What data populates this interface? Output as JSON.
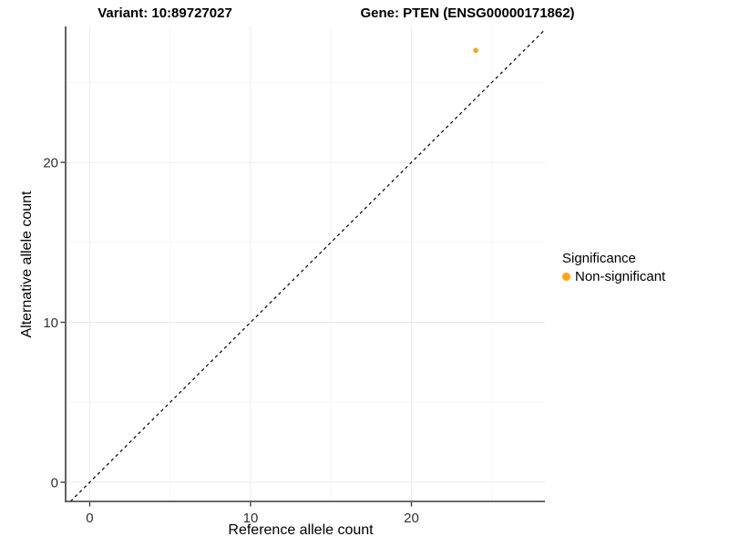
{
  "chart_data": {
    "type": "scatter",
    "title_variant": "Variant: 10:89727027",
    "title_gene": "Gene: PTEN (ENSG00000171862)",
    "xlabel": "Reference allele count",
    "ylabel": "Alternative allele count",
    "xlim": [
      -1.5,
      28.3
    ],
    "ylim": [
      -1.2,
      28.5
    ],
    "x_ticks": [
      0,
      10,
      20
    ],
    "x_minor_ticks": [
      5,
      15,
      25
    ],
    "y_ticks": [
      0,
      10,
      20
    ],
    "y_minor_ticks": [
      5,
      15,
      25
    ],
    "grid": "major+minor",
    "points": [
      {
        "x": 24,
        "y": 27,
        "series": "Non-significant"
      }
    ],
    "identity_line": {
      "equation": "y = x",
      "style": "dashed",
      "color": "#000000"
    },
    "legend": {
      "title": "Significance",
      "position": "right",
      "entries": [
        {
          "label": "Non-significant",
          "color": "#FFA500"
        }
      ]
    },
    "colors": {
      "point": "#FFA500",
      "grid_major": "#EBEBEB",
      "grid_minor": "#F5F5F5",
      "axis_line": "#3A3A3A",
      "tick_label": "#303030"
    }
  }
}
